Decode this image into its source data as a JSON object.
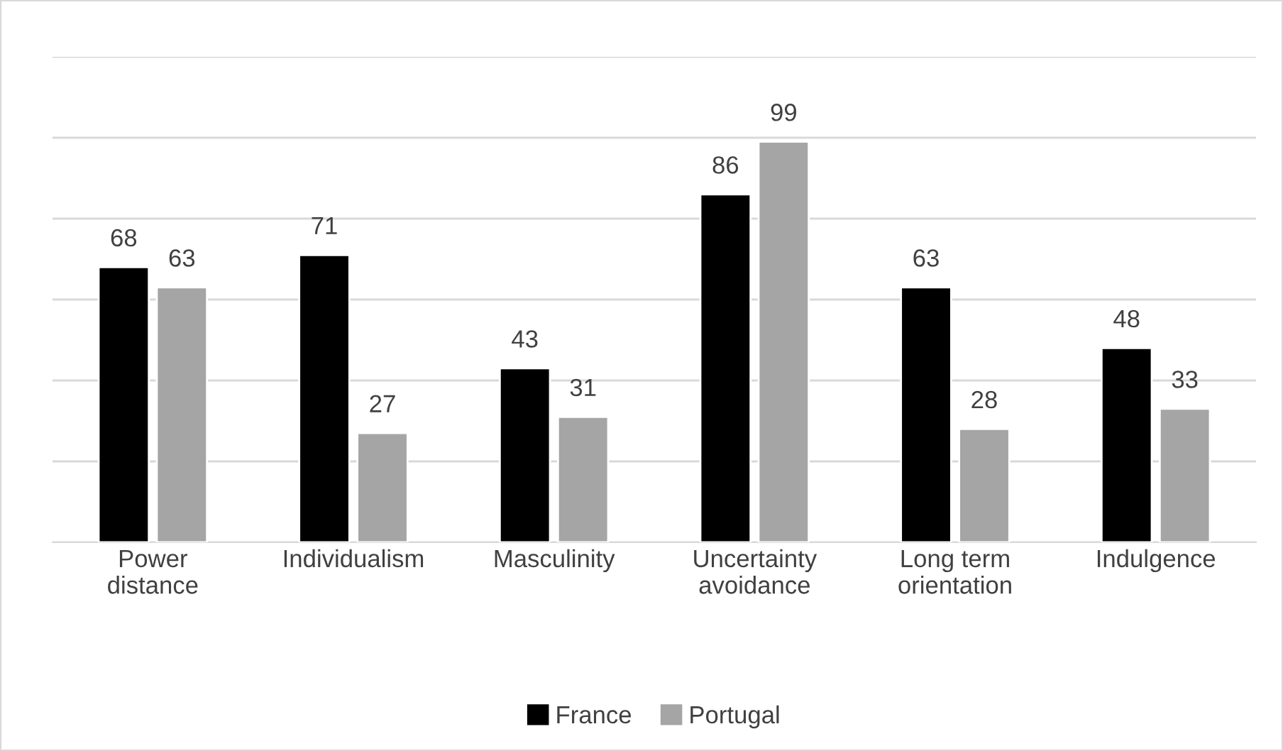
{
  "chart_data": {
    "type": "bar",
    "categories": [
      "Power\ndistance",
      "Individualism",
      "Masculinity",
      "Uncertainty\navoidance",
      "Long term\norientation",
      "Indulgence"
    ],
    "series": [
      {
        "name": "France",
        "color": "#000000",
        "values": [
          68,
          71,
          43,
          86,
          63,
          48
        ]
      },
      {
        "name": "Portugal",
        "color": "#a5a5a5",
        "values": [
          63,
          27,
          31,
          99,
          28,
          33
        ]
      }
    ],
    "ylim": [
      0,
      120
    ],
    "yticks": [
      {
        "value": 0,
        "label": null
      },
      {
        "value": 20,
        "label": null
      },
      {
        "value": 40,
        "label": null
      },
      {
        "value": 60,
        "label": null
      },
      {
        "value": 80,
        "label": null
      },
      {
        "value": 100,
        "label": null
      },
      {
        "value": 120,
        "label": null
      }
    ],
    "grid": "y",
    "legend": "bottom",
    "tick_labels": "x",
    "data_labels": true
  }
}
